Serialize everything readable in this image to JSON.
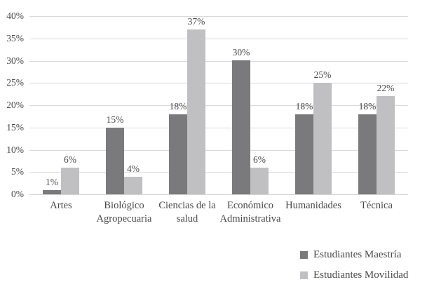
{
  "chart_data": {
    "type": "bar",
    "title": "",
    "xlabel": "",
    "ylabel": "",
    "categories": [
      "Artes",
      "Biológico Agropecuaria",
      "Ciencias de la salud",
      "Económico Administrativa",
      "Humanidades",
      "Técnica"
    ],
    "category_display_lines": [
      [
        "Artes"
      ],
      [
        "Biológico",
        "Agropecuaria"
      ],
      [
        "Ciencias de la",
        "salud"
      ],
      [
        "Económico",
        "Administrativa"
      ],
      [
        "Humanidades"
      ],
      [
        "Técnica"
      ]
    ],
    "series": [
      {
        "name": "Estudiantes Maestría",
        "color": "#7a797b",
        "values": [
          1,
          15,
          18,
          30,
          18,
          18
        ]
      },
      {
        "name": "Estudiantes Movilidad",
        "color": "#c0c0c2",
        "values": [
          6,
          4,
          37,
          6,
          25,
          22
        ]
      }
    ],
    "value_labels": [
      [
        "1%",
        "15%",
        "18%",
        "30%",
        "18%",
        "18%"
      ],
      [
        "6%",
        "4%",
        "37%",
        "6%",
        "25%",
        "22%"
      ]
    ],
    "y_ticks": [
      "0%",
      "5%",
      "10%",
      "15%",
      "20%",
      "25%",
      "30%",
      "35%",
      "40%"
    ],
    "y_tick_values": [
      0,
      5,
      10,
      15,
      20,
      25,
      30,
      35,
      40
    ],
    "ylim": [
      0,
      40
    ],
    "grid": "horizontal",
    "legend_position": "bottom-right"
  },
  "colors": {
    "background": "#ffffff",
    "gridline": "#d9d9d9",
    "axis_line": "#d4d4d4",
    "text": "#484848"
  }
}
